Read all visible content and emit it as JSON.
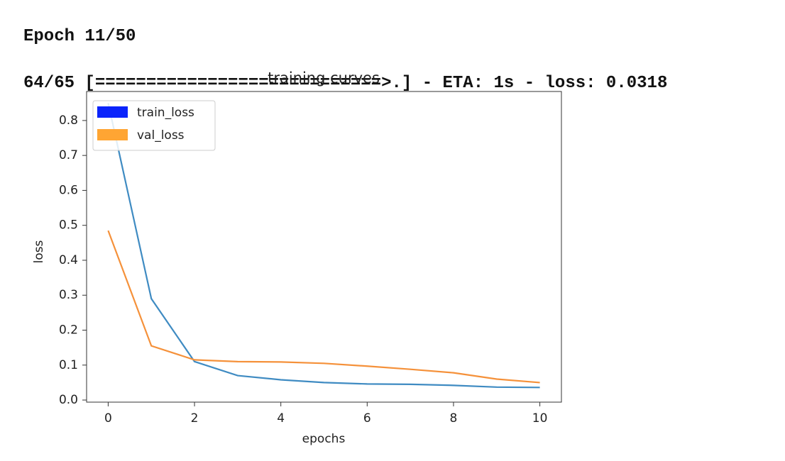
{
  "console": {
    "lines": [
      "Epoch 11/50",
      "64/65 [============================>.] - ETA: 1s - loss: 0.0318"
    ]
  },
  "chart_data": {
    "type": "line",
    "title": "training curves",
    "xlabel": "epochs",
    "ylabel": "loss",
    "x": [
      0,
      1,
      2,
      3,
      4,
      5,
      6,
      7,
      8,
      9,
      10
    ],
    "series": [
      {
        "name": "train_loss",
        "color": "#3f8bc2",
        "legend_color": "#0b24fb",
        "values": [
          0.85,
          0.29,
          0.11,
          0.07,
          0.058,
          0.05,
          0.046,
          0.045,
          0.042,
          0.037,
          0.036
        ]
      },
      {
        "name": "val_loss",
        "color": "#f5913a",
        "legend_color": "#ffa533",
        "values": [
          0.485,
          0.155,
          0.115,
          0.11,
          0.109,
          0.105,
          0.097,
          0.088,
          0.078,
          0.06,
          0.05
        ]
      }
    ],
    "xlim": [
      -0.5,
      10.5
    ],
    "ylim": [
      -0.006,
      0.883
    ],
    "xticks": [
      0,
      2,
      4,
      6,
      8,
      10
    ],
    "yticks": [
      {
        "value": 0,
        "label": "0.0"
      },
      0.1,
      0.2,
      0.3,
      0.4,
      0.5,
      0.6,
      0.7,
      0.8
    ],
    "legend": "upper left",
    "grid": false
  }
}
